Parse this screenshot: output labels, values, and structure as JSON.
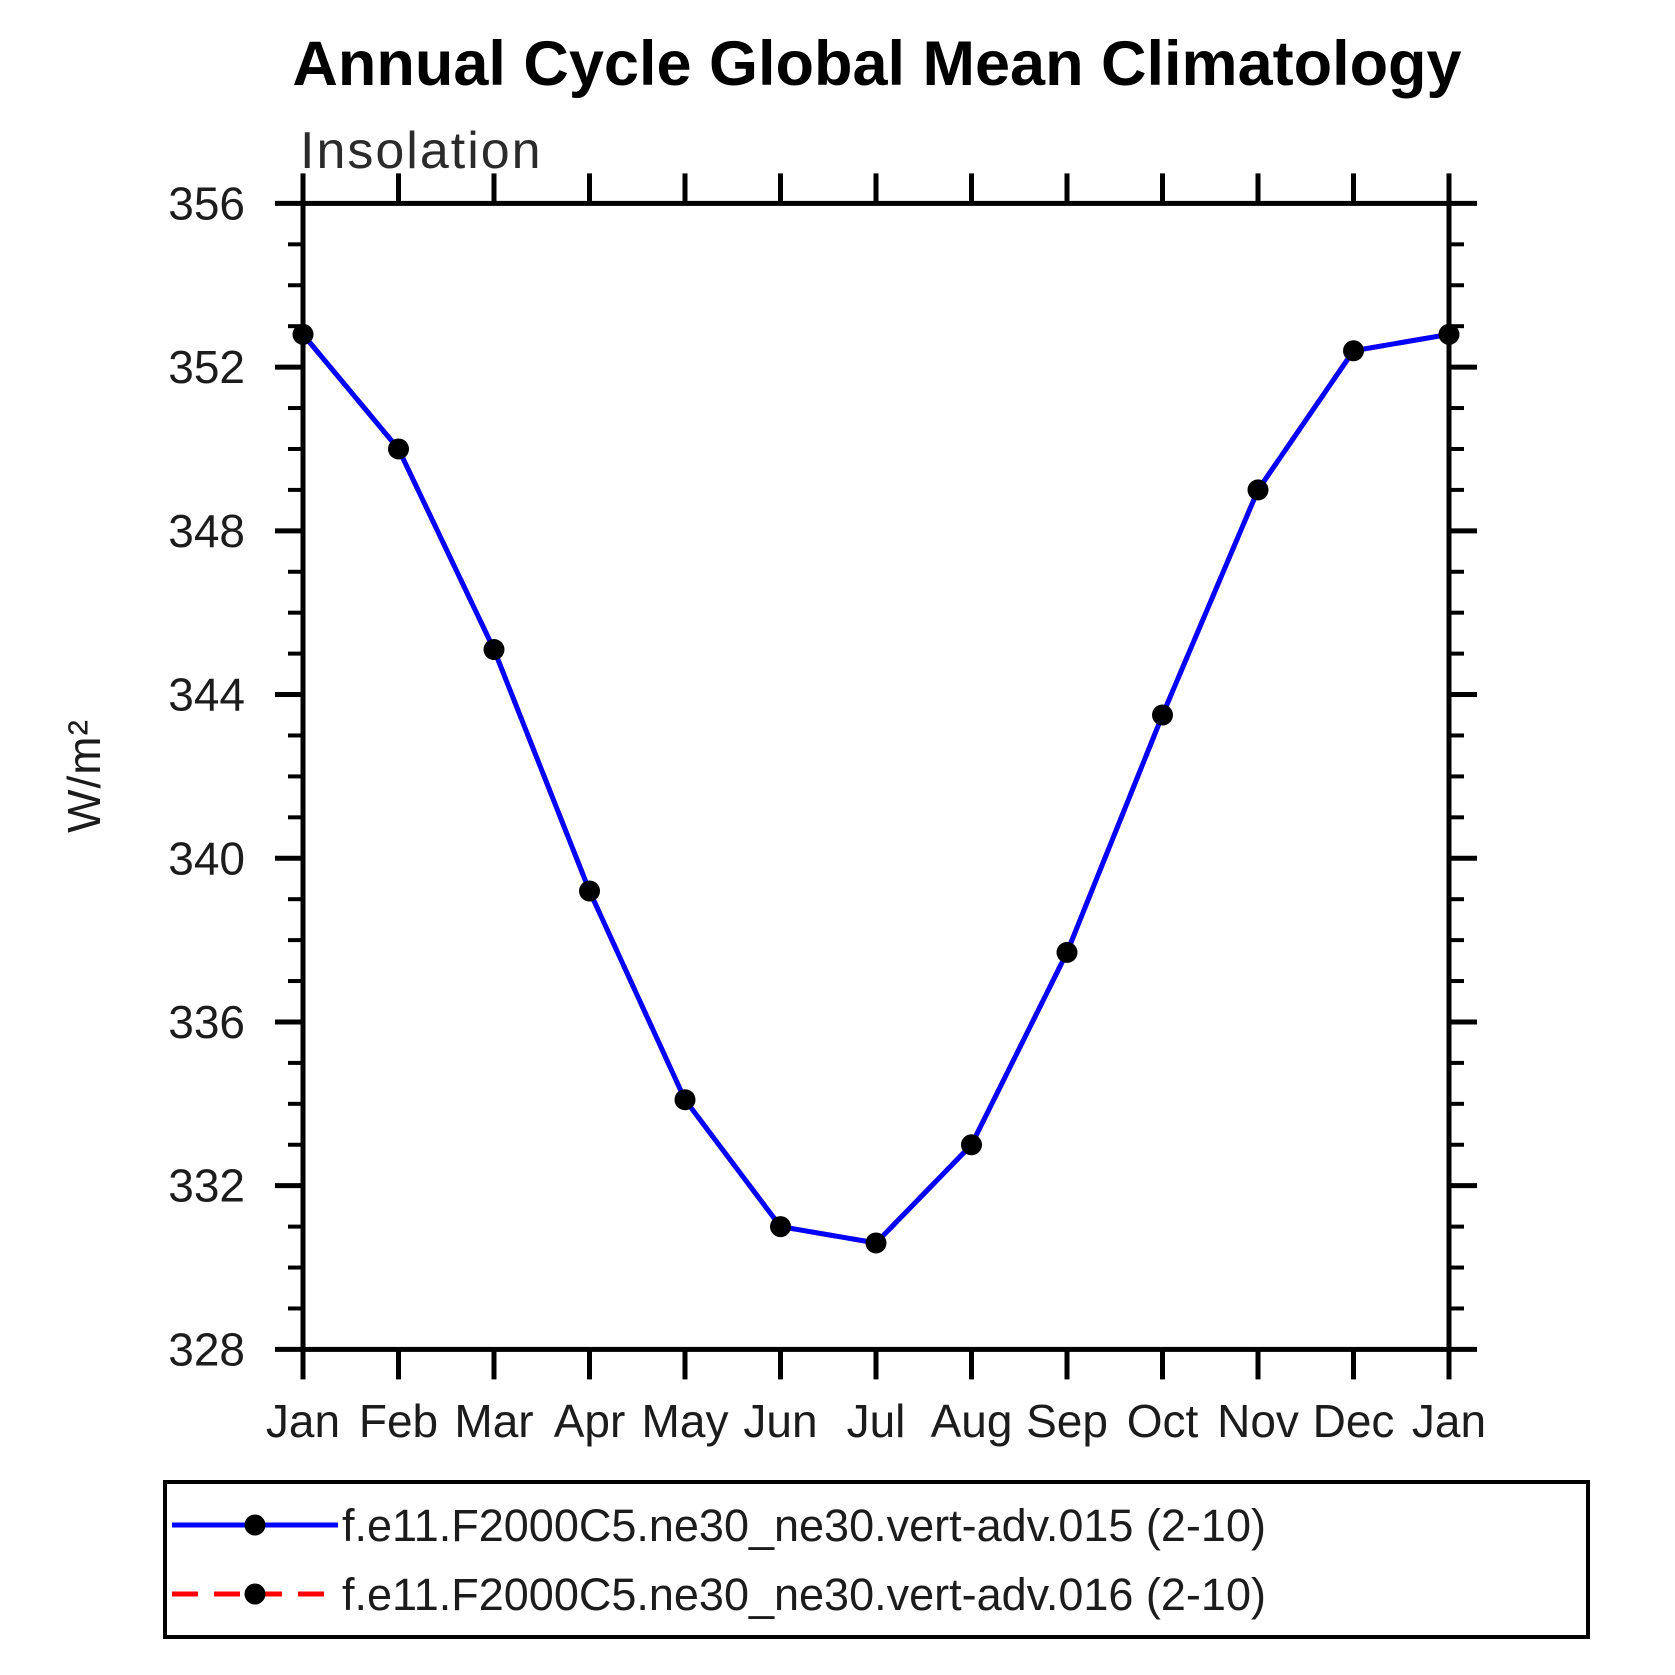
{
  "title": "Annual Cycle Global Mean Climatology",
  "subtitle": "Insolation",
  "ylabel": "W/m²",
  "colors": {
    "series_015": "#0000ff",
    "series_016": "#ff0000",
    "marker": "#000000",
    "axis": "#000000"
  },
  "chart_data": {
    "type": "line",
    "x_categories": [
      "Jan",
      "Feb",
      "Mar",
      "Apr",
      "May",
      "Jun",
      "Jul",
      "Aug",
      "Sep",
      "Oct",
      "Nov",
      "Dec",
      "Jan"
    ],
    "series": [
      {
        "name": "f.e11.F2000C5.ne30_ne30.vert-adv.015 (2-10)",
        "color": "#0000ff",
        "line_style": "solid",
        "marker": "filled-black-circle",
        "values": [
          352.8,
          350.0,
          345.1,
          339.2,
          334.1,
          331.0,
          330.6,
          333.0,
          337.7,
          343.5,
          349.0,
          352.4,
          352.8
        ]
      },
      {
        "name": "f.e11.F2000C5.ne30_ne30.vert-adv.016 (2-10)",
        "color": "#ff0000",
        "line_style": "dashed",
        "marker": "filled-black-circle",
        "values": [
          352.8,
          350.0,
          345.1,
          339.2,
          334.1,
          331.0,
          330.6,
          333.0,
          337.7,
          343.5,
          349.0,
          352.4,
          352.8
        ],
        "note": "visually coincident with series .015; hidden beneath the solid blue line"
      }
    ],
    "ylim": [
      328,
      356
    ],
    "y_major_ticks": [
      328,
      332,
      336,
      340,
      344,
      348,
      352,
      356
    ],
    "y_minor_step": 1,
    "grid": "off",
    "legend_position": "bottom"
  }
}
